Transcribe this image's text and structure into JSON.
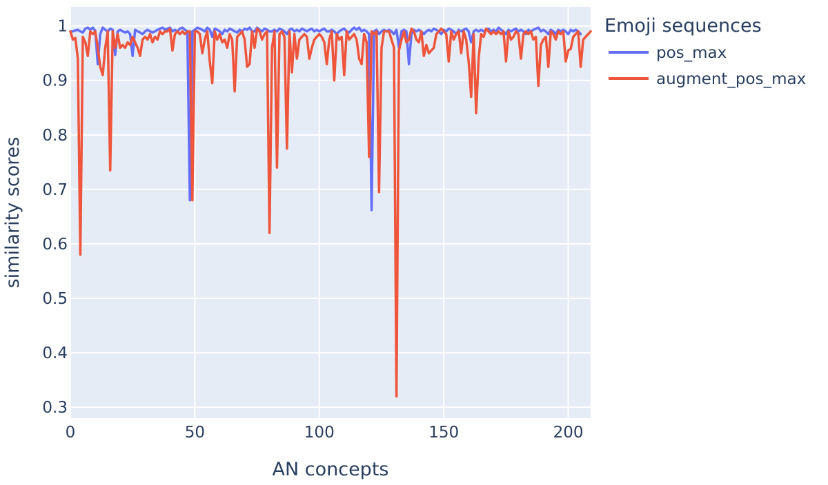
{
  "chart_data": {
    "type": "line",
    "xlabel": "AN concepts",
    "ylabel": "similarity scores",
    "xlim": [
      0,
      209
    ],
    "ylim": [
      0.28,
      1.035
    ],
    "x_ticks": [
      0,
      50,
      100,
      150,
      200
    ],
    "y_ticks": [
      0.3,
      0.4,
      0.5,
      0.6,
      0.7,
      0.8,
      0.9,
      1
    ],
    "grid": true,
    "legend": {
      "title": "Emoji sequences",
      "position": "right"
    },
    "colors": {
      "plot_bg": "#e5ecf6",
      "grid": "#ffffff",
      "text": "#2a3f5f"
    },
    "series": [
      {
        "name": "pos_max",
        "color": "#636efa",
        "values": [
          0.99,
          0.99,
          0.992,
          0.993,
          0.99,
          0.988,
          0.995,
          0.997,
          0.993,
          0.997,
          0.991,
          0.93,
          0.985,
          0.997,
          0.993,
          0.99,
          0.995,
          0.993,
          0.947,
          0.99,
          0.993,
          0.99,
          0.988,
          0.99,
          0.985,
          0.945,
          0.993,
          0.99,
          0.988,
          0.985,
          0.99,
          0.993,
          0.99,
          0.988,
          0.99,
          0.993,
          0.995,
          0.997,
          0.993,
          0.995,
          0.997,
          0.99,
          0.993,
          0.99,
          0.995,
          0.997,
          0.993,
          0.99,
          0.68,
          0.99,
          0.993,
          0.997,
          0.995,
          0.993,
          0.99,
          0.997,
          0.993,
          0.98,
          0.995,
          0.993,
          0.99,
          0.985,
          0.993,
          0.99,
          0.995,
          0.993,
          0.99,
          0.988,
          0.993,
          0.99,
          0.995,
          0.993,
          0.997,
          0.99,
          0.99,
          0.997,
          0.993,
          0.99,
          0.995,
          0.993,
          0.99,
          0.99,
          0.993,
          0.99,
          0.995,
          0.993,
          0.99,
          0.985,
          0.993,
          0.995,
          0.99,
          0.993,
          0.99,
          0.995,
          0.993,
          0.99,
          0.993,
          0.995,
          0.99,
          0.993,
          0.99,
          0.993,
          0.995,
          0.99,
          0.99,
          0.993,
          0.99,
          0.985,
          0.99,
          0.993,
          0.995,
          0.99,
          0.988,
          0.993,
          0.997,
          0.993,
          0.997,
          0.99,
          0.993,
          0.99,
          0.985,
          0.662,
          0.99,
          0.993,
          0.985,
          0.99,
          0.993,
          0.99,
          0.993,
          0.99,
          0.985,
          0.993,
          0.96,
          0.99,
          0.993,
          0.99,
          0.93,
          0.985,
          0.993,
          0.99,
          0.993,
          0.99,
          0.985,
          0.99,
          0.993,
          0.99,
          0.995,
          0.993,
          0.99,
          0.985,
          0.993,
          0.99,
          0.995,
          0.993,
          0.99,
          0.985,
          0.993,
          0.99,
          0.993,
          0.995,
          0.99,
          0.97,
          0.99,
          0.993,
          0.99,
          0.993,
          0.99,
          0.993,
          0.995,
          0.99,
          0.993,
          0.99,
          0.997,
          0.993,
          0.99,
          0.985,
          0.993,
          0.99,
          0.993,
          0.995,
          0.99,
          0.993,
          0.99,
          0.985,
          0.993,
          0.99,
          0.993,
          0.995,
          0.997,
          0.99,
          0.993,
          0.99,
          0.985,
          0.993,
          0.99,
          0.985,
          0.993,
          0.99,
          0.993,
          0.99,
          0.985,
          0.993,
          0.99,
          0.993,
          0.99,
          0.985
        ]
      },
      {
        "name": "augment_pos_max",
        "color": "#ef553b",
        "values": [
          0.99,
          0.975,
          0.978,
          0.94,
          0.58,
          0.98,
          0.97,
          0.945,
          0.99,
          0.985,
          0.99,
          0.96,
          0.925,
          0.91,
          0.96,
          0.99,
          0.735,
          0.99,
          0.96,
          0.985,
          0.96,
          0.965,
          0.96,
          0.97,
          0.965,
          0.98,
          0.97,
          0.96,
          0.945,
          0.975,
          0.98,
          0.975,
          0.985,
          0.97,
          0.98,
          0.975,
          0.99,
          0.985,
          0.99,
          0.99,
          0.995,
          0.955,
          0.985,
          0.99,
          0.985,
          0.99,
          0.985,
          0.99,
          0.99,
          0.68,
          0.99,
          0.99,
          0.985,
          0.95,
          0.975,
          0.99,
          0.935,
          0.895,
          0.99,
          0.975,
          0.985,
          0.97,
          0.975,
          0.96,
          0.985,
          0.975,
          0.88,
          0.98,
          0.985,
          0.99,
          0.975,
          0.925,
          0.93,
          0.99,
          0.96,
          0.995,
          0.99,
          0.975,
          0.985,
          0.99,
          0.62,
          0.96,
          0.99,
          0.74,
          0.985,
          0.99,
          0.98,
          0.775,
          0.99,
          0.915,
          0.985,
          0.94,
          0.975,
          0.98,
          0.985,
          0.98,
          0.94,
          0.96,
          0.975,
          0.98,
          0.985,
          0.98,
          0.97,
          0.93,
          0.975,
          0.99,
          0.9,
          0.985,
          0.975,
          0.98,
          0.91,
          0.99,
          0.975,
          0.98,
          0.985,
          0.975,
          0.94,
          0.93,
          0.985,
          0.97,
          0.76,
          0.99,
          0.985,
          0.99,
          0.695,
          0.96,
          0.99,
          0.99,
          0.99,
          0.975,
          0.96,
          0.32,
          0.955,
          0.975,
          0.99,
          0.97,
          0.975,
          0.995,
          0.99,
          0.975,
          0.97,
          0.99,
          0.945,
          0.965,
          0.95,
          0.955,
          0.96,
          0.985,
          0.99,
          0.995,
          0.99,
          0.985,
          0.935,
          0.99,
          0.975,
          0.985,
          0.99,
          0.95,
          0.99,
          0.975,
          0.935,
          0.87,
          0.985,
          0.84,
          0.94,
          0.985,
          0.98,
          0.995,
          0.99,
          0.985,
          0.99,
          0.985,
          0.99,
          0.985,
          0.99,
          0.935,
          0.99,
          0.975,
          0.98,
          0.99,
          0.985,
          0.94,
          0.985,
          0.99,
          0.985,
          0.99,
          0.975,
          0.98,
          0.89,
          0.965,
          0.975,
          0.98,
          0.925,
          0.99,
          0.985,
          0.975,
          0.99,
          0.985,
          0.99,
          0.935,
          0.955,
          0.958,
          0.98,
          0.985,
          0.99,
          0.925,
          0.975,
          0.98,
          0.985,
          0.99
        ]
      }
    ]
  }
}
